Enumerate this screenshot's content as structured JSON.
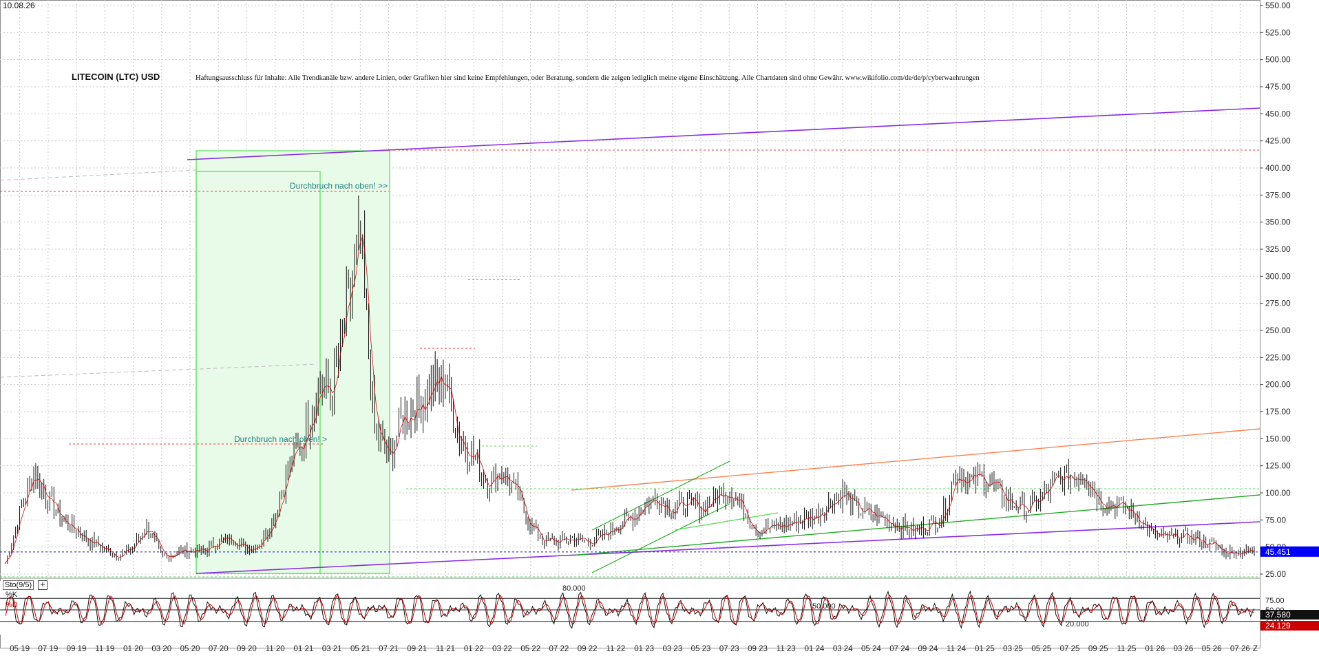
{
  "header": {
    "date": "10.08.26",
    "title": "LITECOIN (LTC) USD",
    "disclaimer": "Haftungsausschluss für Inhalte: Alle Trendkanäle bzw. andere Linien, oder Grafiken hier sind keine Empfehlungen, oder Beratung, sondern die zeigen lediglich meine eigene Einschätzung. Alle Chartdaten sind ohne Gewähr.  www.wikifolio.com/de/de/p/cyberwaehrungen"
  },
  "colors": {
    "candle": "#111111",
    "ma_red": "#cc0000",
    "purple": "#8a2be2",
    "green": "#22aa22",
    "light_green": "#55dd55",
    "orange": "#ff7f50",
    "red_dashed": "#ff3333",
    "blue_dashed": "#2a2ad8",
    "price_badge": "#0000ff"
  },
  "annotations": [
    {
      "text": "Durchbruch nach oben! >>",
      "x": "2021-03",
      "y": 396
    },
    {
      "text": "Durchbruch nach oben! >",
      "x": "2020-09",
      "y": 145
    }
  ],
  "indicator": {
    "title": "Sto(9/5)",
    "add_button": "+",
    "k_label": "%K",
    "d_label": "%D",
    "level_80_label": "80.000",
    "level_50_label": "50.000",
    "level_20_label": "20.000",
    "k_value": "37.580",
    "d_value": "24.129",
    "y_ticks": [
      "75.00",
      "50.00",
      "25.00"
    ]
  },
  "chart_data": {
    "type": "line",
    "series_style": "candlestick",
    "ylim": [
      25,
      550
    ],
    "y_ticks": [
      "550.00",
      "525.00",
      "500.00",
      "475.00",
      "450.00",
      "425.00",
      "400.00",
      "375.00",
      "350.00",
      "325.00",
      "300.00",
      "275.00",
      "250.00",
      "225.00",
      "200.00",
      "175.00",
      "150.00",
      "125.00",
      "100.00",
      "75.00",
      "50.00",
      "25.00"
    ],
    "x_ticks": [
      "05 19",
      "07 19",
      "09 19",
      "11 19",
      "01 20",
      "03 20",
      "05 20",
      "07 20",
      "09 20",
      "11 20",
      "01 21",
      "03 21",
      "05 21",
      "07 21",
      "09 21",
      "11 21",
      "01 22",
      "03 22",
      "05 22",
      "07 22",
      "09 22",
      "11 22",
      "01 23",
      "03 23",
      "05 23",
      "07 23",
      "09 23",
      "11 23",
      "01 24",
      "03 24",
      "05 24",
      "07 24",
      "09 24",
      "11 24",
      "01 25",
      "03 25",
      "05 25",
      "07 25",
      "09 25",
      "11 25",
      "01 26",
      "03 26",
      "05 26",
      "07 26"
    ],
    "x_end_label": "Z",
    "last_price": "45.451",
    "last_price_value": 45.451,
    "grid": true,
    "series": [
      {
        "x": [
          "2019-04",
          "2019-05",
          "2019-06",
          "2019-07",
          "2019-08",
          "2019-09",
          "2019-10",
          "2019-11",
          "2019-12",
          "2020-01",
          "2020-02",
          "2020-03",
          "2020-04",
          "2020-05",
          "2020-06",
          "2020-07",
          "2020-08",
          "2020-09",
          "2020-10",
          "2020-11",
          "2020-12",
          "2021-01",
          "2021-02",
          "2021-03",
          "2021-04",
          "2021-05",
          "2021-06",
          "2021-07",
          "2021-08",
          "2021-09",
          "2021-10",
          "2021-11",
          "2021-12",
          "2022-01",
          "2022-02",
          "2022-03",
          "2022-04",
          "2022-05",
          "2022-06",
          "2022-07",
          "2022-08",
          "2022-09",
          "2022-10",
          "2022-11",
          "2022-12",
          "2023-01",
          "2023-02",
          "2023-03",
          "2023-04",
          "2023-05",
          "2023-06",
          "2023-07",
          "2023-08",
          "2023-09",
          "2023-10",
          "2023-11",
          "2023-12",
          "2024-01",
          "2024-02",
          "2024-03",
          "2024-04",
          "2024-05",
          "2024-06",
          "2024-07",
          "2024-08",
          "2024-09",
          "2024-10",
          "2024-11",
          "2024-12",
          "2025-01",
          "2025-02",
          "2025-03",
          "2025-04",
          "2025-05",
          "2025-06",
          "2025-07",
          "2025-08",
          "2025-09",
          "2025-10",
          "2025-11",
          "2025-12",
          "2026-01",
          "2026-02",
          "2026-03",
          "2026-04",
          "2026-05",
          "2026-06",
          "2026-07",
          "2026-08"
        ],
        "values": [
          35,
          80,
          120,
          95,
          75,
          65,
          55,
          48,
          42,
          50,
          70,
          40,
          45,
          47,
          46,
          55,
          58,
          48,
          55,
          80,
          125,
          150,
          200,
          190,
          260,
          330,
          160,
          130,
          170,
          180,
          195,
          205,
          150,
          135,
          110,
          120,
          100,
          70,
          55,
          55,
          58,
          55,
          58,
          70,
          75,
          90,
          95,
          85,
          90,
          85,
          95,
          105,
          85,
          65,
          68,
          70,
          75,
          78,
          90,
          100,
          85,
          80,
          75,
          70,
          65,
          70,
          78,
          120,
          110,
          115,
          100,
          90,
          85,
          95,
          110,
          115,
          120,
          95,
          90,
          85,
          75,
          60,
          58,
          60,
          57,
          52,
          45,
          46,
          45
        ]
      }
    ]
  }
}
